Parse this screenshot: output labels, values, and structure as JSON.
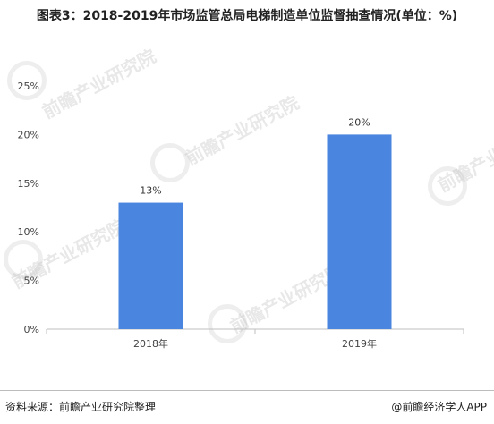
{
  "title": "图表3：2018-2019年市场监管总局电梯制造单位监督抽查情况(单位：%)",
  "footer": {
    "source": "资料来源：前瞻产业研究院整理",
    "brand": "@前瞻经济学人APP"
  },
  "watermark": "前瞻产业研究院",
  "colors": {
    "bar": "#4a86e0",
    "axis": "#bfbfbf",
    "text": "#444444"
  },
  "chart_data": {
    "type": "bar",
    "categories": [
      "2018年",
      "2019年"
    ],
    "values": [
      13,
      20
    ],
    "value_labels": [
      "13%",
      "20%"
    ],
    "yticks": [
      "0%",
      "5%",
      "10%",
      "15%",
      "20%",
      "25%"
    ],
    "ylim": [
      0,
      25
    ],
    "grid": false,
    "legend": "none"
  }
}
